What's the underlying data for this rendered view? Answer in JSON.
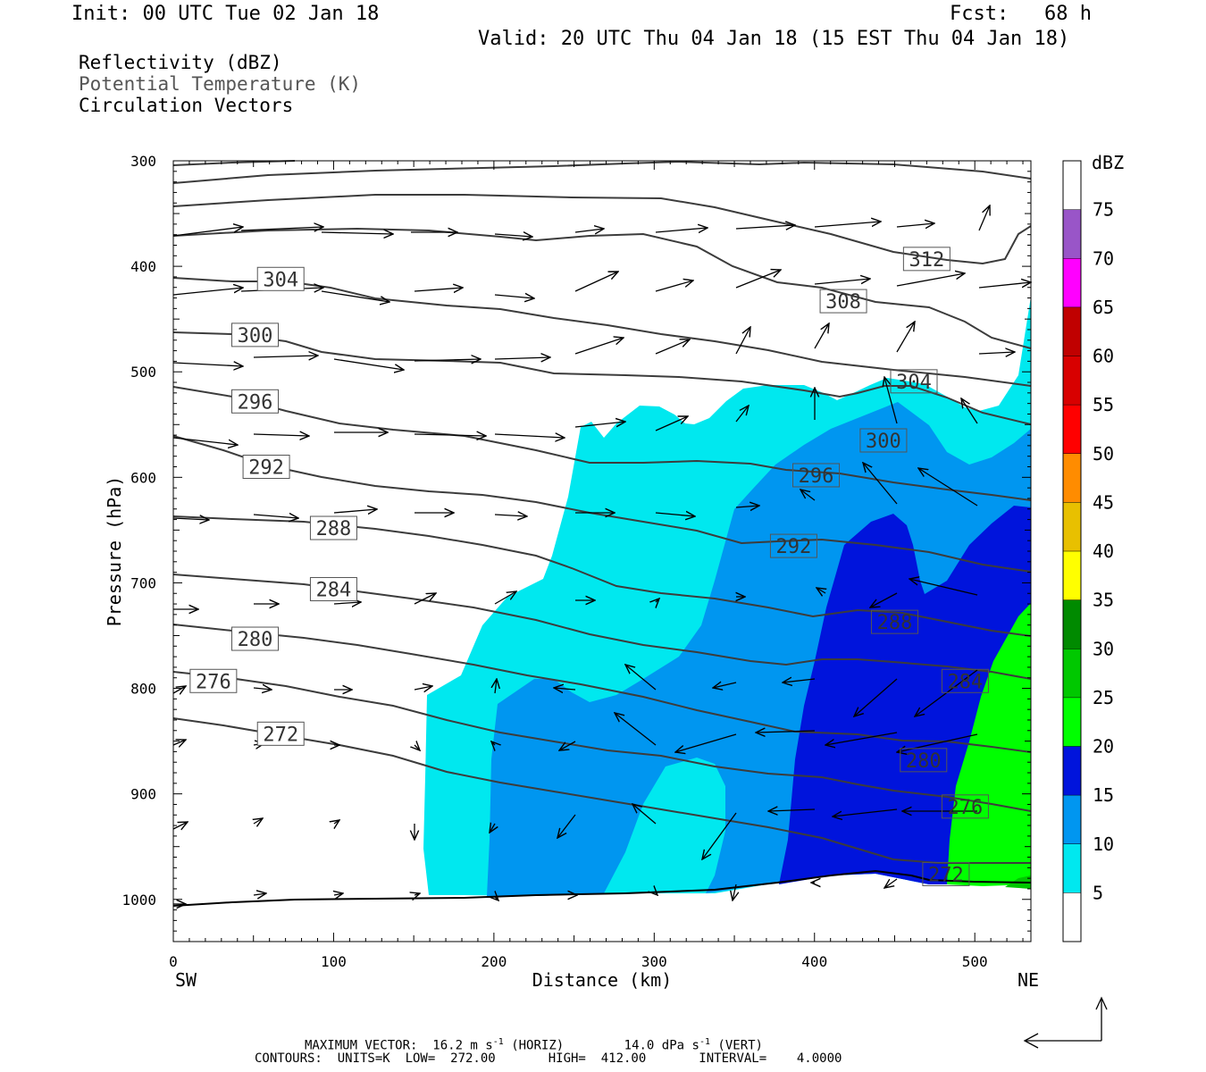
{
  "header": {
    "init": "Init: 00 UTC Tue 02 Jan 18",
    "fcst": "Fcst:   68 h",
    "valid": "Valid: 20 UTC Thu 04 Jan 18 (15 EST Thu 04 Jan 18)"
  },
  "fields": {
    "reflectivity": "Reflectivity (dBZ)",
    "theta": "Potential Temperature (K)",
    "vectors": "Circulation Vectors"
  },
  "footer": {
    "max_vector_prefix": "MAXIMUM VECTOR:  16.2 m s",
    "max_vector_horiz": " (HORIZ)",
    "max_vector_vert_value": "14.0 dPa s",
    "max_vector_vert": " (VERT)",
    "contours": "CONTOURS:  UNITS=K  LOW=  272.00       HIGH=  412.00       INTERVAL=    4.0000"
  },
  "colors": {
    "z5": "#00e8ef",
    "z10": "#0096f0",
    "z15": "#0014dc",
    "z20": "#00ff00",
    "z25": "#00c800",
    "contour": "#3c3c3c"
  },
  "chart_data": {
    "type": "cross-section",
    "xlabel": "Distance (km)",
    "ylabel": "Pressure (hPa)",
    "xlim": [
      0,
      535
    ],
    "ylim": [
      1040,
      300
    ],
    "x_ticks": [
      "0",
      "100",
      "200",
      "300",
      "400",
      "500"
    ],
    "y_ticks": [
      "300",
      "400",
      "500",
      "600",
      "700",
      "800",
      "900",
      "1000"
    ],
    "x_start_label": "SW",
    "x_end_label": "NE",
    "colorbar": {
      "title": "dBZ",
      "levels": [
        "5",
        "10",
        "15",
        "20",
        "25",
        "30",
        "35",
        "40",
        "45",
        "50",
        "55",
        "60",
        "65",
        "70",
        "75"
      ],
      "colors": [
        "#ffffff",
        "#00e8ef",
        "#0096f0",
        "#0014dc",
        "#00ff00",
        "#00c800",
        "#008a00",
        "#ffff00",
        "#e8c000",
        "#ff8c00",
        "#ff0000",
        "#d80000",
        "#c00000",
        "#ff00ff",
        "#9955c8",
        "#ffffff"
      ]
    },
    "contour_labels": [
      {
        "value": "304",
        "x": 67,
        "p": 412
      },
      {
        "value": "300",
        "x": 51,
        "p": 465
      },
      {
        "value": "296",
        "x": 51,
        "p": 528
      },
      {
        "value": "292",
        "x": 58,
        "p": 590
      },
      {
        "value": "288",
        "x": 100,
        "p": 648
      },
      {
        "value": "284",
        "x": 100,
        "p": 706
      },
      {
        "value": "280",
        "x": 51,
        "p": 753
      },
      {
        "value": "276",
        "x": 25,
        "p": 793
      },
      {
        "value": "272",
        "x": 67,
        "p": 843
      },
      {
        "value": "312",
        "x": 470,
        "p": 393
      },
      {
        "value": "308",
        "x": 418,
        "p": 433
      },
      {
        "value": "304",
        "x": 462,
        "p": 509
      },
      {
        "value": "300",
        "x": 443,
        "p": 565
      },
      {
        "value": "296",
        "x": 401,
        "p": 598
      },
      {
        "value": "292",
        "x": 387,
        "p": 665
      },
      {
        "value": "288",
        "x": 450,
        "p": 737
      },
      {
        "value": "284",
        "x": 494,
        "p": 793
      },
      {
        "value": "280",
        "x": 468,
        "p": 868
      },
      {
        "value": "276",
        "x": 494,
        "p": 912
      },
      {
        "value": "272",
        "x": 482,
        "p": 976
      }
    ]
  }
}
